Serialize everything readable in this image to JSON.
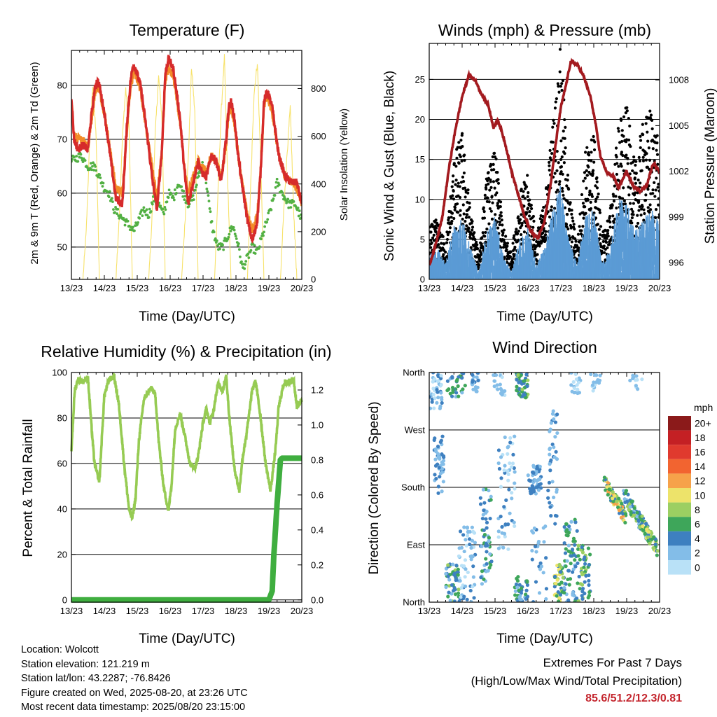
{
  "colors": {
    "temp2m": "#d62b2b",
    "temp9m": "#f28c28",
    "dewpoint": "#52b043",
    "solar": "#f7e26b",
    "gust": "#000000",
    "wind": "#5b9bd5",
    "pressure": "#a31a1f",
    "rh": "#96cb53",
    "precip": "#3fae3f",
    "extremes": "#c4262e"
  },
  "info": {
    "location": "Location: Wolcott",
    "elevation": "Station elevation: 121.219 m",
    "latlon": "Station lat/lon: 43.2287; -76.8426",
    "created": "Figure created on Wed, 2025-08-20, at 23:26 UTC",
    "recent": "Most recent data timestamp: 2025/08/20 23:15:00"
  },
  "extremes": {
    "line1": "Extremes For Past 7 Days",
    "line2": "(High/Low/Max Wind/Total Precipitation)",
    "values": "85.6/51.2/12.3/0.81"
  },
  "chart_data": [
    {
      "id": "temperature",
      "type": "line",
      "title": "Temperature (F)",
      "xlabel": "Time (Day/UTC)",
      "ylabel": "2m & 9m T (Red, Orange) & 2m Td (Green)",
      "ylabel_right": "Solar Insolation (Yellow)",
      "x_ticks": [
        "13/23",
        "14/23",
        "15/23",
        "16/23",
        "17/23",
        "18/23",
        "19/23",
        "20/23"
      ],
      "xlim": [
        0,
        7
      ],
      "ylim": [
        44,
        86.5
      ],
      "y_ticks": [
        50,
        60,
        70,
        80
      ],
      "y2lim": [
        0,
        960
      ],
      "y2_ticks": [
        0,
        200,
        400,
        600,
        800
      ],
      "grid": "horizontal",
      "series": [
        {
          "key": "t2m",
          "axis": "left",
          "x": [
            0,
            0.08,
            0.2,
            0.35,
            0.5,
            0.6,
            0.7,
            0.78,
            0.85,
            1.0,
            1.2,
            1.35,
            1.55,
            1.7,
            1.8,
            1.88,
            1.95,
            2.1,
            2.3,
            2.45,
            2.6,
            2.75,
            2.85,
            2.95,
            3.1,
            3.3,
            3.45,
            3.55,
            3.7,
            3.85,
            3.95,
            4.1,
            4.25,
            4.4,
            4.55,
            4.7,
            4.78,
            4.85,
            4.95,
            5.05,
            5.15,
            5.25,
            5.35,
            5.5,
            5.65,
            5.75,
            5.85,
            5.95,
            6.1,
            6.3,
            6.5,
            6.7,
            6.85,
            7.0
          ],
          "y": [
            78,
            70,
            68,
            69,
            68,
            74,
            79,
            81,
            80,
            75,
            66,
            59,
            58,
            74,
            81,
            84,
            83,
            80,
            71,
            63,
            57,
            68,
            82,
            85,
            83,
            74,
            63,
            58,
            62,
            66,
            64,
            63,
            67,
            66,
            62,
            70,
            76,
            77,
            74,
            68,
            63,
            59,
            55,
            51,
            55,
            64,
            77,
            79,
            76,
            67,
            63,
            62,
            62,
            58
          ]
        },
        {
          "key": "t9m",
          "axis": "left",
          "x": [
            0,
            0.08,
            0.2,
            0.35,
            0.5,
            0.6,
            0.7,
            0.78,
            0.85,
            1.0,
            1.2,
            1.35,
            1.55,
            1.7,
            1.8,
            1.88,
            1.95,
            2.1,
            2.3,
            2.45,
            2.6,
            2.75,
            2.85,
            2.95,
            3.1,
            3.3,
            3.45,
            3.55,
            3.7,
            3.85,
            3.95,
            4.1,
            4.25,
            4.4,
            4.55,
            4.7,
            4.78,
            4.85,
            4.95,
            5.05,
            5.15,
            5.25,
            5.35,
            5.5,
            5.65,
            5.75,
            5.85,
            5.95,
            6.1,
            6.3,
            6.5,
            6.7,
            6.85,
            7.0
          ],
          "y": [
            77,
            71,
            70,
            70,
            69,
            73,
            78,
            80,
            79,
            75,
            67,
            61,
            60,
            73,
            80,
            82,
            82,
            79,
            71,
            65,
            59,
            68,
            81,
            83,
            82,
            73,
            64,
            60,
            63,
            66,
            65,
            64,
            67,
            66,
            63,
            69,
            75,
            76,
            73,
            68,
            63,
            60,
            56,
            53,
            56,
            64,
            76,
            78,
            75,
            67,
            63,
            62,
            61,
            58
          ]
        },
        {
          "key": "td",
          "axis": "left",
          "x": [
            0,
            0.3,
            0.5,
            0.7,
            0.85,
            1.0,
            1.15,
            1.3,
            1.45,
            1.6,
            1.75,
            1.9,
            2.05,
            2.2,
            2.35,
            2.5,
            2.65,
            2.8,
            2.95,
            3.1,
            3.25,
            3.4,
            3.55,
            3.7,
            3.85,
            4.0,
            4.1,
            4.2,
            4.3,
            4.45,
            4.6,
            4.75,
            4.9,
            5.05,
            5.2,
            5.35,
            5.5,
            5.65,
            5.8,
            5.95,
            6.1,
            6.25,
            6.4,
            6.6,
            6.8,
            7.0
          ],
          "y": [
            66,
            67,
            65,
            65,
            63,
            61,
            60,
            57,
            56,
            55,
            54,
            53,
            55,
            57,
            56,
            59,
            58,
            56,
            60,
            59,
            62,
            60,
            58,
            59,
            63,
            66,
            62,
            57,
            53,
            50,
            50,
            52,
            54,
            51,
            46,
            48,
            50,
            49,
            52,
            55,
            58,
            62,
            60,
            58,
            58,
            55
          ]
        },
        {
          "key": "solar",
          "axis": "right",
          "x": [
            0,
            0.35,
            0.45,
            0.55,
            0.65,
            0.75,
            0.85,
            1.35,
            1.45,
            1.55,
            1.65,
            1.75,
            1.85,
            2.35,
            2.45,
            2.55,
            2.65,
            2.75,
            2.85,
            3.35,
            3.45,
            3.55,
            3.65,
            3.75,
            3.85,
            4.35,
            4.45,
            4.55,
            4.65,
            4.75,
            4.85,
            5.35,
            5.45,
            5.55,
            5.65,
            5.75,
            5.85,
            6.35,
            6.45,
            6.55,
            6.65,
            6.75,
            6.85,
            7.0
          ],
          "y": [
            0,
            0,
            200,
            560,
            810,
            600,
            0,
            0,
            250,
            600,
            800,
            640,
            0,
            0,
            260,
            620,
            850,
            680,
            0,
            0,
            240,
            500,
            890,
            700,
            0,
            0,
            350,
            700,
            930,
            400,
            0,
            0,
            400,
            780,
            910,
            500,
            0,
            0,
            280,
            520,
            720,
            300,
            0,
            0
          ]
        }
      ]
    },
    {
      "id": "winds",
      "type": "scatter",
      "title": "Winds (mph) & Pressure (mb)",
      "xlabel": "Time (Day/UTC)",
      "ylabel": "Sonic Wind & Gust (Blue, Black)",
      "ylabel_right": "Station Pressure (Maroon)",
      "x_ticks": [
        "13/23",
        "14/23",
        "15/23",
        "16/23",
        "17/23",
        "18/23",
        "19/23",
        "20/23"
      ],
      "xlim": [
        0,
        7
      ],
      "ylim": [
        0,
        29.5
      ],
      "y_ticks": [
        0,
        5,
        10,
        15,
        20,
        25
      ],
      "y2lim": [
        994.9,
        1010.4
      ],
      "y2_ticks": [
        996,
        999,
        1002,
        1005,
        1008
      ],
      "grid": "horizontal",
      "series": [
        {
          "key": "pressure",
          "axis": "right",
          "x": [
            0,
            0.2,
            0.4,
            0.6,
            0.8,
            1.0,
            1.2,
            1.4,
            1.6,
            1.8,
            1.95,
            2.1,
            2.3,
            2.5,
            2.7,
            2.9,
            3.1,
            3.3,
            3.5,
            3.7,
            3.85,
            4.0,
            4.15,
            4.3,
            4.5,
            4.7,
            4.9,
            5.05,
            5.2,
            5.4,
            5.6,
            5.75,
            5.9,
            6.0,
            6.2,
            6.4,
            6.6,
            6.8,
            7.0
          ],
          "y": [
            995.8,
            997.2,
            999.0,
            1002.2,
            1004.8,
            1006.9,
            1008.3,
            1008.0,
            1007.0,
            1006.3,
            1004.9,
            1005.3,
            1003.9,
            1002.0,
            1000.5,
            999.0,
            998.0,
            997.6,
            998.7,
            1001.3,
            1003.9,
            1006.2,
            1007.6,
            1009.2,
            1009.0,
            1008.2,
            1006.9,
            1005.2,
            1003.0,
            1001.9,
            1001.7,
            1000.9,
            1001.6,
            1002.0,
            1001.0,
            1000.7,
            1001.0,
            1002.5,
            1002.0
          ]
        },
        {
          "key": "wind_envelope",
          "axis": "left",
          "x": [
            0,
            0.25,
            0.5,
            0.75,
            1.0,
            1.25,
            1.5,
            1.75,
            2.0,
            2.25,
            2.5,
            2.75,
            3.0,
            3.25,
            3.5,
            3.75,
            4.0,
            4.25,
            4.5,
            4.75,
            5.0,
            5.25,
            5.5,
            5.75,
            6.0,
            6.25,
            6.5,
            6.75,
            7.0
          ],
          "y": [
            3,
            4,
            2,
            7,
            8,
            4,
            1,
            6,
            8,
            3,
            1,
            5,
            7,
            2,
            4,
            9,
            12,
            5,
            2,
            8,
            9,
            2,
            4,
            10,
            10,
            6,
            8,
            9,
            7
          ]
        },
        {
          "key": "gust_envelope",
          "axis": "left",
          "x": [
            0,
            0.25,
            0.5,
            0.75,
            1.0,
            1.25,
            1.5,
            1.75,
            2.0,
            2.25,
            2.5,
            2.75,
            3.0,
            3.25,
            3.5,
            3.75,
            4.0,
            4.25,
            4.5,
            4.75,
            5.0,
            5.25,
            5.5,
            5.75,
            6.0,
            6.25,
            6.5,
            6.75,
            7.0
          ],
          "y": [
            6,
            7,
            4,
            14,
            17,
            8,
            3,
            12,
            15,
            6,
            3,
            10,
            12,
            5,
            9,
            18,
            27,
            10,
            4,
            15,
            17,
            5,
            8,
            18,
            20,
            13,
            18,
            20,
            15
          ]
        }
      ]
    },
    {
      "id": "rh",
      "type": "line",
      "title": "Relative Humidity (%) & Precipitation (in)",
      "xlabel": "Time (Day/UTC)",
      "ylabel": "Percent & Total Rainfall",
      "x_ticks": [
        "13/23",
        "14/23",
        "15/23",
        "16/23",
        "17/23",
        "18/23",
        "19/23",
        "20/23"
      ],
      "xlim": [
        0,
        7
      ],
      "ylim": [
        -1,
        100
      ],
      "y_ticks": [
        0,
        20,
        40,
        60,
        80,
        100
      ],
      "y2lim": [
        -0.013,
        1.3
      ],
      "y2_ticks": [
        0.0,
        0.2,
        0.4,
        0.6,
        0.8,
        1.0,
        1.2
      ],
      "grid": "horizontal",
      "series": [
        {
          "key": "rh",
          "axis": "left",
          "x": [
            0,
            0.1,
            0.2,
            0.35,
            0.5,
            0.6,
            0.7,
            0.85,
            1.0,
            1.15,
            1.3,
            1.45,
            1.6,
            1.75,
            1.85,
            1.95,
            2.05,
            2.2,
            2.35,
            2.45,
            2.55,
            2.65,
            2.8,
            2.95,
            3.05,
            3.15,
            3.3,
            3.45,
            3.6,
            3.75,
            3.85,
            4.0,
            4.1,
            4.2,
            4.3,
            4.45,
            4.6,
            4.7,
            4.8,
            4.95,
            5.1,
            5.2,
            5.35,
            5.5,
            5.6,
            5.75,
            5.9,
            6.05,
            6.2,
            6.3,
            6.45,
            6.6,
            6.75,
            6.85,
            7.0
          ],
          "y": [
            66,
            92,
            97,
            96,
            98,
            78,
            60,
            52,
            90,
            97,
            98,
            85,
            60,
            40,
            36,
            45,
            70,
            88,
            92,
            93,
            90,
            70,
            50,
            39,
            52,
            75,
            82,
            72,
            60,
            58,
            63,
            78,
            84,
            78,
            82,
            95,
            92,
            99,
            80,
            58,
            48,
            62,
            76,
            93,
            96,
            80,
            60,
            48,
            66,
            85,
            95,
            96,
            97,
            85,
            88
          ]
        },
        {
          "key": "precip",
          "axis": "right",
          "x": [
            0,
            5.0,
            6.0,
            6.1,
            6.15,
            6.2,
            6.25,
            6.35,
            6.4,
            7.0
          ],
          "y": [
            0,
            0,
            0,
            0.05,
            0.25,
            0.4,
            0.55,
            0.8,
            0.81,
            0.81
          ]
        }
      ]
    },
    {
      "id": "wind_direction",
      "type": "scatter",
      "title": "Wind Direction",
      "xlabel": "Time (Day/UTC)",
      "ylabel": "Direction (Colored By Speed)",
      "x_ticks": [
        "13/23",
        "14/23",
        "15/23",
        "16/23",
        "17/23",
        "18/23",
        "19/23",
        "20/23"
      ],
      "xlim": [
        0,
        7
      ],
      "y_tick_labels": [
        "North",
        "East",
        "South",
        "West",
        "North"
      ],
      "y_tick_values": [
        0,
        90,
        180,
        270,
        360
      ],
      "ylim": [
        0,
        360
      ],
      "grid": "horizontal",
      "colorbar": {
        "unit": "mph",
        "labels": [
          "20+",
          "18",
          "16",
          "14",
          "12",
          "10",
          "8",
          "6",
          "4",
          "2",
          "0"
        ],
        "colors": [
          "#8b1a1a",
          "#c42024",
          "#e03a2e",
          "#f26430",
          "#f6a24a",
          "#ede36a",
          "#9ccf62",
          "#3ea65a",
          "#3e80c0",
          "#83bde8",
          "#b9e1f7"
        ]
      }
    }
  ]
}
